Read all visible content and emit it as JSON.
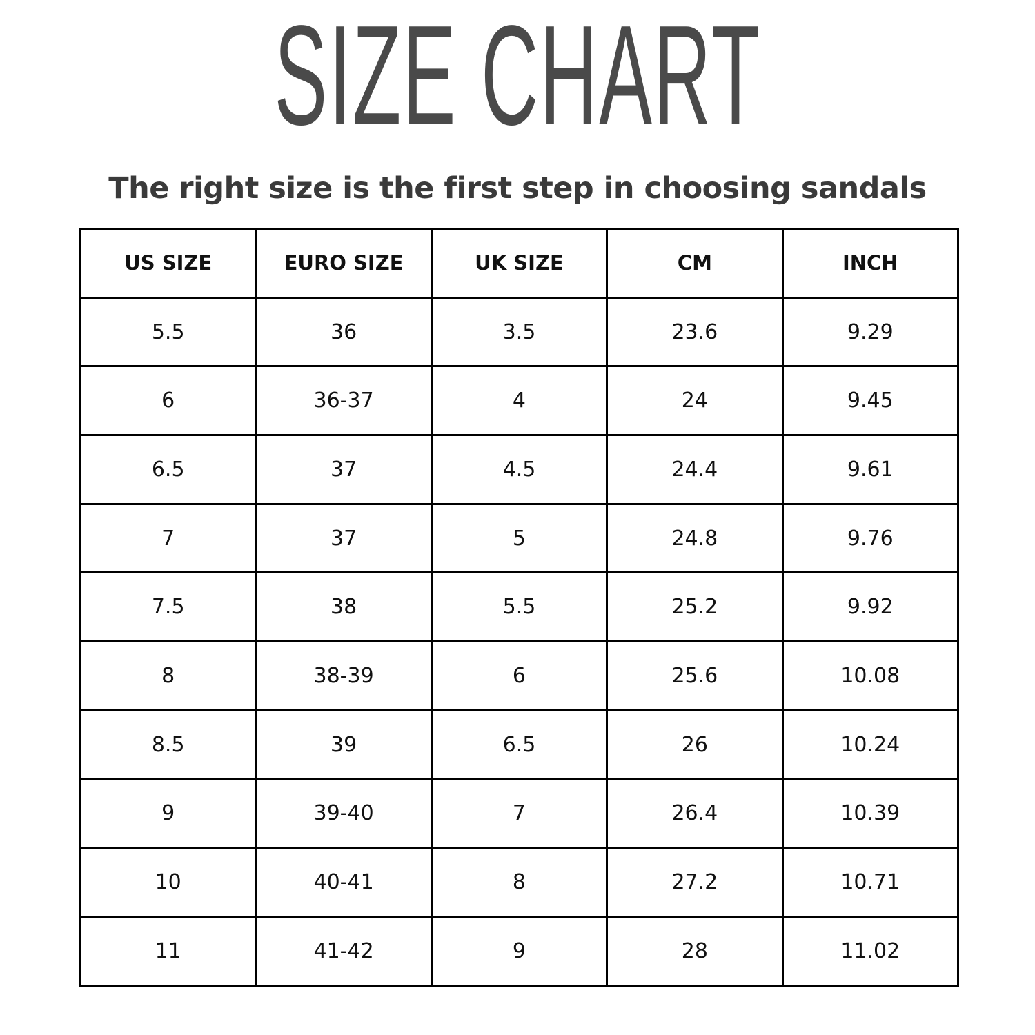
{
  "title": "SIZE CHART",
  "subtitle": "The right size is the first step in choosing sandals",
  "table": {
    "headers": [
      "US SIZE",
      "EURO SIZE",
      "UK SIZE",
      "CM",
      "INCH"
    ],
    "rows": [
      [
        "5.5",
        "36",
        "3.5",
        "23.6",
        "9.29"
      ],
      [
        "6",
        "36-37",
        "4",
        "24",
        "9.45"
      ],
      [
        "6.5",
        "37",
        "4.5",
        "24.4",
        "9.61"
      ],
      [
        "7",
        "37",
        "5",
        "24.8",
        "9.76"
      ],
      [
        "7.5",
        "38",
        "5.5",
        "25.2",
        "9.92"
      ],
      [
        "8",
        "38-39",
        "6",
        "25.6",
        "10.08"
      ],
      [
        "8.5",
        "39",
        "6.5",
        "26",
        "10.24"
      ],
      [
        "9",
        "39-40",
        "7",
        "26.4",
        "10.39"
      ],
      [
        "10",
        "40-41",
        "8",
        "27.2",
        "10.71"
      ],
      [
        "11",
        "41-42",
        "9",
        "28",
        "11.02"
      ]
    ]
  },
  "colors": {
    "title": "#4a4a4a",
    "subtitle": "#3a3a3a",
    "border": "#000000"
  }
}
